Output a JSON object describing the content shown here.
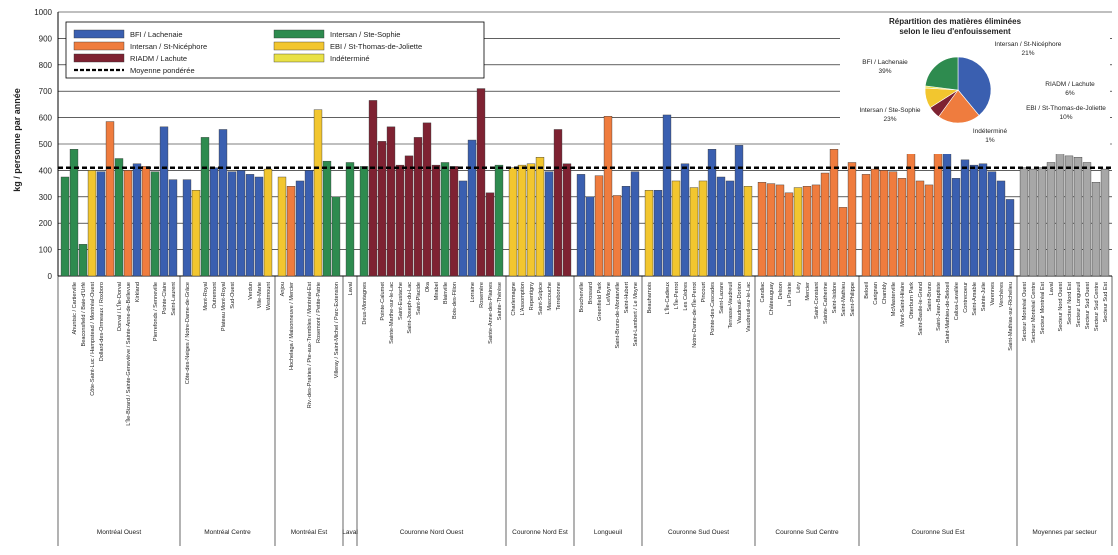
{
  "colors": {
    "BFI": "#3a5fb0",
    "StNic": "#ef7c3e",
    "RIADM": "#7e2232",
    "StSophie": "#2e8b4f",
    "EBI": "#f2c62f",
    "Indet": "#e9e145",
    "Gray": "#a7a7a7",
    "grid": "#000000",
    "avg": "#000000"
  },
  "chart_data": {
    "type": "bar",
    "ylabel": "kg / personne par année",
    "ylim": [
      0,
      1000
    ],
    "yticks": [
      0,
      100,
      200,
      300,
      400,
      500,
      600,
      700,
      800,
      900,
      1000
    ],
    "weighted_average": 410,
    "legend": {
      "placement": "top-left",
      "entries": [
        {
          "label": "BFI / Lachenaie",
          "key": "BFI"
        },
        {
          "label": "Intersan / Ste-Sophie",
          "key": "StSophie"
        },
        {
          "label": "Intersan / St-Nicéphore",
          "key": "StNic"
        },
        {
          "label": "EBI / St-Thomas-de-Joliette",
          "key": "EBI"
        },
        {
          "label": "RIADM / Lachute",
          "key": "RIADM"
        },
        {
          "label": "Indéterminé",
          "key": "Indet"
        },
        {
          "label": "Moyenne pondérée",
          "key": "avg"
        }
      ]
    },
    "groups": [
      {
        "label": "Montréal Ouest",
        "bars": [
          {
            "cat": "",
            "value": 375,
            "c": "StSophie"
          },
          {
            "cat": "Ahuntsic / Cartierville",
            "value": 480,
            "c": "StSophie"
          },
          {
            "cat": "Beaconsfield / Baie-d'Urfé",
            "value": 120,
            "c": "StSophie"
          },
          {
            "cat": "Côte-Saint-Luc / Hampstead / Montréal-Ouest",
            "value": 400,
            "c": "EBI"
          },
          {
            "cat": "Dollard-des-Ormeaux / Roxboro",
            "value": 395,
            "c": "BFI"
          },
          {
            "cat": "",
            "value": 585,
            "c": "StNic"
          },
          {
            "cat": "Dorval / L'Île-Dorval",
            "value": 445,
            "c": "StSophie"
          },
          {
            "cat": "L'Île-Bizard / Sainte-Geneviève / Sainte-Anne-de-Bellevue",
            "value": 400,
            "c": "StNic"
          },
          {
            "cat": "Kirkland",
            "value": 425,
            "c": "BFI"
          },
          {
            "cat": "",
            "value": 415,
            "c": "StNic"
          },
          {
            "cat": "Pierrefonds / Senneville",
            "value": 395,
            "c": "StSophie"
          },
          {
            "cat": "Pointe-Claire",
            "value": 565,
            "c": "BFI"
          },
          {
            "cat": "Saint-Laurent",
            "value": 365,
            "c": "BFI"
          }
        ]
      },
      {
        "label": "Montréal Centre",
        "bars": [
          {
            "cat": "Côte-des-Neiges / Notre-Dame-de-Grâce",
            "value": 365,
            "c": "BFI"
          },
          {
            "cat": "",
            "value": 325,
            "c": "EBI"
          },
          {
            "cat": "Mont-Royal",
            "value": 525,
            "c": "StSophie"
          },
          {
            "cat": "Outremont",
            "value": 410,
            "c": "BFI"
          },
          {
            "cat": "Plateau Mont-Royal",
            "value": 555,
            "c": "BFI"
          },
          {
            "cat": "Sud-Ouest",
            "value": 395,
            "c": "BFI"
          },
          {
            "cat": "",
            "value": 400,
            "c": "BFI"
          },
          {
            "cat": "Verdun",
            "value": 385,
            "c": "BFI"
          },
          {
            "cat": "Ville-Marie",
            "value": 375,
            "c": "BFI"
          },
          {
            "cat": "Westmount",
            "value": 405,
            "c": "EBI"
          }
        ]
      },
      {
        "label": "Montréal Est",
        "bars": [
          {
            "cat": "Anjou",
            "value": 375,
            "c": "EBI"
          },
          {
            "cat": "Hochelaga / Maisonneuve / Mercier",
            "value": 340,
            "c": "StNic"
          },
          {
            "cat": "",
            "value": 360,
            "c": "BFI"
          },
          {
            "cat": "Riv.-des-Prairies / Pte-aux-Trembles / Montréal-Est",
            "value": 400,
            "c": "BFI"
          },
          {
            "cat": "Rosemont / Petite-Patrie",
            "value": 630,
            "c": "EBI"
          },
          {
            "cat": "",
            "value": 435,
            "c": "StSophie"
          },
          {
            "cat": "Villeray / Saint-Michel / Parc-Extension",
            "value": 300,
            "c": "StSophie"
          }
        ]
      },
      {
        "label": "Laval",
        "bars": [
          {
            "cat": "Laval",
            "value": 430,
            "c": "StSophie"
          }
        ]
      },
      {
        "label": "Couronne Nord Ouest",
        "bars": [
          {
            "cat": "Deux-Montagnes",
            "value": 415,
            "c": "StSophie"
          },
          {
            "cat": "",
            "value": 665,
            "c": "RIADM"
          },
          {
            "cat": "Pointe-Calumet",
            "value": 510,
            "c": "RIADM"
          },
          {
            "cat": "Sainte-Marthe-sur-le-Lac",
            "value": 565,
            "c": "RIADM"
          },
          {
            "cat": "Saint-Eustache",
            "value": 420,
            "c": "RIADM"
          },
          {
            "cat": "Saint-Joseph-du-Lac",
            "value": 455,
            "c": "RIADM"
          },
          {
            "cat": "Saint-Placide",
            "value": 525,
            "c": "RIADM"
          },
          {
            "cat": "Oka",
            "value": 580,
            "c": "RIADM"
          },
          {
            "cat": "Mirabel",
            "value": 420,
            "c": "RIADM"
          },
          {
            "cat": "Blainville",
            "value": 430,
            "c": "StSophie"
          },
          {
            "cat": "Bois-des-Filion",
            "value": 415,
            "c": "RIADM"
          },
          {
            "cat": "",
            "value": 360,
            "c": "BFI"
          },
          {
            "cat": "Lorraine",
            "value": 515,
            "c": "BFI"
          },
          {
            "cat": "Rosemère",
            "value": 710,
            "c": "RIADM"
          },
          {
            "cat": "Sainte-Anne-des-Plaines",
            "value": 315,
            "c": "RIADM"
          },
          {
            "cat": "Sainte-Thérèse",
            "value": 420,
            "c": "StSophie"
          }
        ]
      },
      {
        "label": "Couronne Nord Est",
        "bars": [
          {
            "cat": "Charlemagne",
            "value": 410,
            "c": "EBI"
          },
          {
            "cat": "L'Assomption",
            "value": 420,
            "c": "EBI"
          },
          {
            "cat": "Repentigny",
            "value": 425,
            "c": "EBI"
          },
          {
            "cat": "Saint-Sulpice",
            "value": 450,
            "c": "EBI"
          },
          {
            "cat": "Mascouche",
            "value": 395,
            "c": "BFI"
          },
          {
            "cat": "Terrebonne",
            "value": 555,
            "c": "RIADM"
          },
          {
            "cat": "",
            "value": 425,
            "c": "RIADM"
          }
        ]
      },
      {
        "label": "Longueuil",
        "bars": [
          {
            "cat": "Boucherville",
            "value": 385,
            "c": "BFI"
          },
          {
            "cat": "Brossard",
            "value": 300,
            "c": "BFI"
          },
          {
            "cat": "Greenfield Park",
            "value": 380,
            "c": "StNic"
          },
          {
            "cat": "LeMoyne",
            "value": 605,
            "c": "StNic"
          },
          {
            "cat": "Saint-Bruno-de-Montarville",
            "value": 305,
            "c": "StNic"
          },
          {
            "cat": "Saint-Hubert",
            "value": 340,
            "c": "BFI"
          },
          {
            "cat": "Saint-Lambert / Le Moyne",
            "value": 395,
            "c": "BFI"
          }
        ]
      },
      {
        "label": "Couronne Sud Ouest",
        "bars": [
          {
            "cat": "Beauharnois",
            "value": 325,
            "c": "EBI"
          },
          {
            "cat": "",
            "value": 325,
            "c": "BFI"
          },
          {
            "cat": "L'Île-Cadieux",
            "value": 610,
            "c": "BFI"
          },
          {
            "cat": "L'Île-Perrot",
            "value": 360,
            "c": "EBI"
          },
          {
            "cat": "Les Cèdres",
            "value": 425,
            "c": "BFI"
          },
          {
            "cat": "Notre-Dame-de-l'Île-Perrot",
            "value": 335,
            "c": "EBI"
          },
          {
            "cat": "Pincourt",
            "value": 360,
            "c": "EBI"
          },
          {
            "cat": "Pointe-des-Cascades",
            "value": 480,
            "c": "BFI"
          },
          {
            "cat": "Saint-Lazare",
            "value": 375,
            "c": "BFI"
          },
          {
            "cat": "Terrasse-Vaudreuil",
            "value": 360,
            "c": "BFI"
          },
          {
            "cat": "Vaudreuil-Dorion",
            "value": 495,
            "c": "BFI"
          },
          {
            "cat": "Vaudreuil-sur-le-Lac",
            "value": 340,
            "c": "EBI"
          }
        ]
      },
      {
        "label": "Couronne Sud Centre",
        "bars": [
          {
            "cat": "Candiac",
            "value": 355,
            "c": "StNic"
          },
          {
            "cat": "Châteauguay",
            "value": 350,
            "c": "StNic"
          },
          {
            "cat": "Delson",
            "value": 345,
            "c": "StNic"
          },
          {
            "cat": "La Prairie",
            "value": 315,
            "c": "StNic"
          },
          {
            "cat": "Léry",
            "value": 335,
            "c": "EBI"
          },
          {
            "cat": "Mercier",
            "value": 340,
            "c": "StNic"
          },
          {
            "cat": "Saint-Constant",
            "value": 345,
            "c": "StNic"
          },
          {
            "cat": "Sainte-Catherine",
            "value": 390,
            "c": "StNic"
          },
          {
            "cat": "Saint-Isidore",
            "value": 480,
            "c": "StNic"
          },
          {
            "cat": "Saint-Mathieu",
            "value": 260,
            "c": "StNic"
          },
          {
            "cat": "Saint-Philippe",
            "value": 430,
            "c": "StNic"
          }
        ]
      },
      {
        "label": "Couronne Sud Est",
        "bars": [
          {
            "cat": "Beloeil",
            "value": 385,
            "c": "StNic"
          },
          {
            "cat": "Carignan",
            "value": 405,
            "c": "StNic"
          },
          {
            "cat": "Chambly",
            "value": 400,
            "c": "StNic"
          },
          {
            "cat": "McMasterville",
            "value": 395,
            "c": "StNic"
          },
          {
            "cat": "Mont-Saint-Hilaire",
            "value": 370,
            "c": "StNic"
          },
          {
            "cat": "Otterburn Park",
            "value": 530,
            "c": "StNic"
          },
          {
            "cat": "Saint-Basile-le-Grand",
            "value": 360,
            "c": "StNic"
          },
          {
            "cat": "Saint-Bruno",
            "value": 345,
            "c": "StNic"
          },
          {
            "cat": "Saint-Jean-Baptiste",
            "value": 525,
            "c": "StNic"
          },
          {
            "cat": "Saint-Mathieu-de-Beloeil",
            "value": 470,
            "c": "BFI"
          },
          {
            "cat": "Calixa-Lavallée",
            "value": 370,
            "c": "BFI"
          },
          {
            "cat": "Contrecoeur",
            "value": 440,
            "c": "BFI"
          },
          {
            "cat": "Saint-Amable",
            "value": 420,
            "c": "BFI"
          },
          {
            "cat": "Sainte-Julie",
            "value": 425,
            "c": "BFI"
          },
          {
            "cat": "Varennes",
            "value": 395,
            "c": "BFI"
          },
          {
            "cat": "Verchères",
            "value": 360,
            "c": "BFI"
          },
          {
            "cat": "Saint-Mathias-sur-Richelieu",
            "value": 290,
            "c": "BFI"
          }
        ]
      },
      {
        "label": "Moyennes par secteur",
        "bars": [
          {
            "cat": "Secteur Montréal Ouest",
            "value": 410,
            "c": "Gray"
          },
          {
            "cat": "Secteur Montréal Centre",
            "value": 405,
            "c": "Gray"
          },
          {
            "cat": "Secteur Montréal Est",
            "value": 410,
            "c": "Gray"
          },
          {
            "cat": "Laval",
            "value": 430,
            "c": "Gray"
          },
          {
            "cat": "Secteur Nord Ouest",
            "value": 465,
            "c": "Gray"
          },
          {
            "cat": "Secteur Nord Est",
            "value": 455,
            "c": "Gray"
          },
          {
            "cat": "Secteur Longueuil",
            "value": 450,
            "c": "Gray"
          },
          {
            "cat": "Secteur Sud Ouest",
            "value": 430,
            "c": "Gray"
          },
          {
            "cat": "Secteur Sud Centre",
            "value": 355,
            "c": "Gray"
          },
          {
            "cat": "Secteur Sud Est",
            "value": 405,
            "c": "Gray"
          }
        ]
      }
    ],
    "inset_pie": {
      "type": "pie",
      "title": "Répartition des matières éliminées selon le lieu d'enfouissement",
      "slices": [
        {
          "label": "BFI / Lachenaie",
          "pct_label": "39%",
          "value": 39,
          "c": "BFI"
        },
        {
          "label": "Intersan / St-Nicéphore",
          "pct_label": "21%",
          "value": 21,
          "c": "StNic"
        },
        {
          "label": "RIADM / Lachute",
          "pct_label": "6%",
          "value": 6,
          "c": "RIADM"
        },
        {
          "label": "EBI / St-Thomas-de-Joliette",
          "pct_label": "10%",
          "value": 10,
          "c": "EBI"
        },
        {
          "label": "Indéterminé",
          "pct_label": "1%",
          "value": 1,
          "c": "Indet"
        },
        {
          "label": "Intersan / Ste-Sophie",
          "pct_label": "23%",
          "value": 23,
          "c": "StSophie"
        }
      ]
    }
  }
}
